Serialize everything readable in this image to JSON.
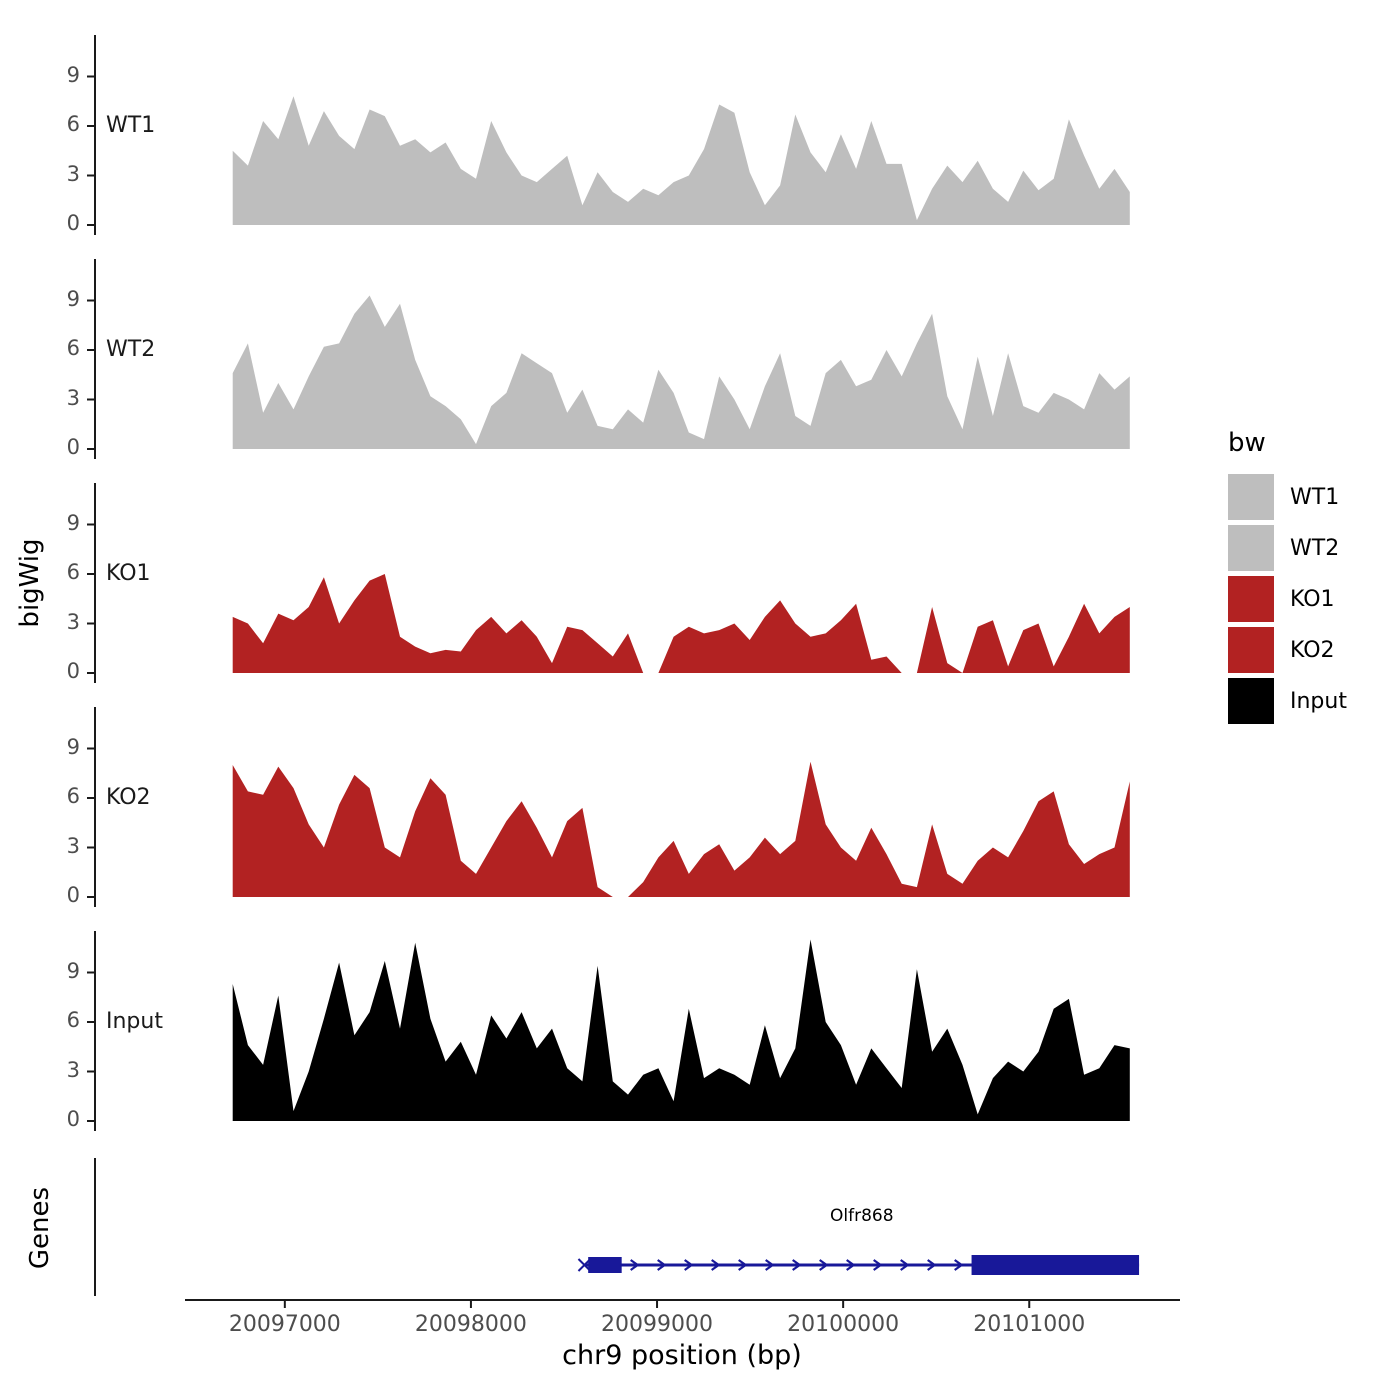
{
  "figure": {
    "y_axis_label": "bigWig",
    "genes_axis_label": "Genes",
    "x_axis_title": "chr9 position (bp)"
  },
  "legend": {
    "title": "bw",
    "entries": [
      {
        "label": "WT1",
        "color": "#BEBEBE"
      },
      {
        "label": "WT2",
        "color": "#BEBEBE"
      },
      {
        "label": "KO1",
        "color": "#B22222"
      },
      {
        "label": "KO2",
        "color": "#B22222"
      },
      {
        "label": "Input",
        "color": "#000000"
      }
    ]
  },
  "chart_data": {
    "type": "area",
    "title": "",
    "xlabel": "chr9 position (bp)",
    "ylabel": "bigWig",
    "x_domain": [
      20095980,
      20101810
    ],
    "x_tick_values": [
      20097000,
      20098000,
      20099000,
      20100000,
      20101000
    ],
    "y_ticks": [
      0,
      3,
      6,
      9
    ],
    "y_domain": [
      0,
      11.5
    ],
    "data_x_range": [
      20096720,
      20101540
    ],
    "tracks": [
      {
        "name": "WT1",
        "color": "#BEBEBE",
        "values": [
          4.5,
          3.6,
          6.3,
          5.2,
          7.8,
          4.8,
          6.9,
          5.4,
          4.6,
          7.0,
          6.6,
          4.8,
          5.2,
          4.4,
          5.0,
          3.4,
          2.8,
          6.3,
          4.4,
          3.0,
          2.6,
          3.4,
          4.2,
          1.2,
          3.2,
          2.0,
          1.4,
          2.2,
          1.8,
          2.6,
          3.0,
          4.6,
          7.3,
          6.8,
          3.2,
          1.2,
          2.4,
          6.7,
          4.4,
          3.2,
          5.5,
          3.4,
          6.3,
          3.7,
          3.7,
          0.3,
          2.2,
          3.6,
          2.6,
          3.9,
          2.2,
          1.4,
          3.3,
          2.1,
          2.8,
          6.4,
          4.2,
          2.2,
          3.4,
          2.0
        ]
      },
      {
        "name": "WT2",
        "color": "#BEBEBE",
        "values": [
          4.6,
          6.4,
          2.2,
          4.0,
          2.4,
          4.4,
          6.2,
          6.4,
          8.2,
          9.3,
          7.4,
          8.8,
          5.4,
          3.2,
          2.6,
          1.8,
          0.3,
          2.6,
          3.4,
          5.8,
          5.2,
          4.6,
          2.2,
          3.6,
          1.4,
          1.2,
          2.4,
          1.6,
          4.8,
          3.4,
          1.0,
          0.6,
          4.4,
          3.0,
          1.2,
          3.8,
          5.8,
          2.0,
          1.4,
          4.6,
          5.4,
          3.8,
          4.2,
          6.0,
          4.4,
          6.4,
          8.2,
          3.2,
          1.2,
          5.6,
          2.0,
          5.8,
          2.6,
          2.2,
          3.4,
          3.0,
          2.4,
          4.6,
          3.6,
          4.4
        ]
      },
      {
        "name": "KO1",
        "color": "#B22222",
        "values": [
          3.4,
          3.0,
          1.8,
          3.6,
          3.2,
          4.0,
          5.8,
          3.0,
          4.4,
          5.6,
          6.0,
          2.2,
          1.6,
          1.2,
          1.4,
          1.3,
          2.6,
          3.4,
          2.4,
          3.2,
          2.2,
          0.6,
          2.8,
          2.6,
          1.8,
          1.0,
          2.4,
          0.0,
          0.0,
          2.2,
          2.8,
          2.4,
          2.6,
          3.0,
          2.0,
          3.4,
          4.4,
          3.0,
          2.2,
          2.4,
          3.2,
          4.2,
          0.8,
          1.0,
          0.0,
          0.0,
          4.0,
          0.6,
          0.0,
          2.8,
          3.2,
          0.4,
          2.6,
          3.0,
          0.4,
          2.2,
          4.2,
          2.4,
          3.4,
          4.0
        ]
      },
      {
        "name": "KO2",
        "color": "#B22222",
        "values": [
          8.0,
          6.4,
          6.2,
          7.9,
          6.6,
          4.4,
          3.0,
          5.6,
          7.4,
          6.6,
          3.0,
          2.4,
          5.2,
          7.2,
          6.2,
          2.2,
          1.4,
          3.0,
          4.6,
          5.8,
          4.2,
          2.4,
          4.6,
          5.4,
          0.6,
          0.0,
          0.0,
          0.9,
          2.4,
          3.4,
          1.4,
          2.6,
          3.2,
          1.6,
          2.4,
          3.6,
          2.6,
          3.4,
          8.2,
          4.4,
          3.0,
          2.2,
          4.2,
          2.6,
          0.8,
          0.6,
          4.4,
          1.4,
          0.8,
          2.2,
          3.0,
          2.4,
          4.0,
          5.8,
          6.4,
          3.2,
          2.0,
          2.6,
          3.0,
          7.0
        ]
      },
      {
        "name": "Input",
        "color": "#000000",
        "values": [
          8.3,
          4.6,
          3.4,
          7.6,
          0.6,
          3.0,
          6.2,
          9.6,
          5.2,
          6.6,
          9.7,
          5.6,
          10.8,
          6.2,
          3.6,
          4.8,
          2.8,
          6.4,
          5.0,
          6.6,
          4.4,
          5.6,
          3.2,
          2.4,
          9.4,
          2.4,
          1.6,
          2.8,
          3.2,
          1.2,
          6.8,
          2.6,
          3.2,
          2.8,
          2.2,
          5.8,
          2.6,
          4.4,
          11.0,
          6.0,
          4.6,
          2.2,
          4.4,
          3.2,
          2.0,
          9.2,
          4.2,
          5.6,
          3.4,
          0.4,
          2.6,
          3.6,
          3.0,
          4.2,
          6.8,
          7.4,
          2.8,
          3.2,
          4.6,
          4.4
        ]
      }
    ],
    "gene": {
      "name": "Olfr868",
      "color": "#181899",
      "strand": "+",
      "start": 20098610,
      "end": 20101590,
      "exons": [
        [
          20098630,
          20098810
        ],
        [
          20100690,
          20101590
        ]
      ]
    }
  }
}
